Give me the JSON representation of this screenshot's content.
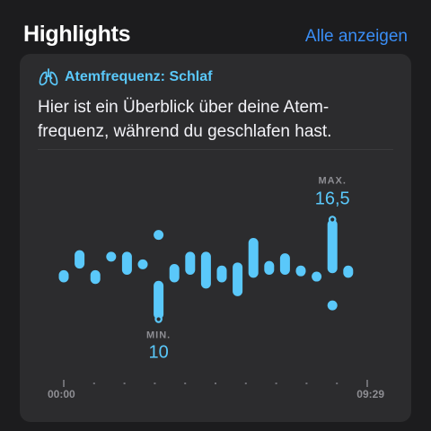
{
  "header": {
    "title": "Highlights",
    "show_all": "Alle anzeigen"
  },
  "card": {
    "icon": "lungs-icon",
    "label": "Atemfrequenz: Schlaf",
    "description_line1": "Hier ist ein Überblick über deine Atem-",
    "description_line2": "frequenz, während du geschlafen hast."
  },
  "colors": {
    "background": "#1c1c1e",
    "card": "#2c2c2e",
    "accent": "#5ac8fa",
    "link": "#3a8ef6"
  },
  "chart_data": {
    "type": "range",
    "x_start_label": "00:00",
    "x_end_label": "09:29",
    "min_label": "MIN.",
    "min_value": "10",
    "max_label": "MAX.",
    "max_value": "16,5",
    "ylim": [
      9.5,
      17
    ],
    "intervals": [
      [
        12.4,
        13.2
      ],
      [
        13.3,
        14.5
      ],
      [
        12.3,
        13.2
      ],
      [
        14.1,
        14.4
      ],
      [
        12.9,
        14.4
      ],
      [
        13.5,
        13.9
      ],
      [
        10.0,
        12.5
      ],
      [
        12.4,
        13.6
      ],
      [
        12.9,
        14.4
      ],
      [
        12.0,
        14.4
      ],
      [
        12.4,
        13.5
      ],
      [
        11.5,
        13.7
      ],
      [
        12.7,
        15.3
      ],
      [
        12.9,
        13.8
      ],
      [
        12.9,
        14.3
      ],
      [
        12.8,
        13.5
      ],
      [
        12.6,
        13.1
      ],
      [
        13.0,
        16.5
      ],
      [
        12.7,
        13.5
      ]
    ],
    "outliers": [
      {
        "index": 6,
        "value": 15.5
      },
      {
        "index": 17,
        "value": 10.9
      }
    ],
    "min_index": 6,
    "max_index": 17
  }
}
